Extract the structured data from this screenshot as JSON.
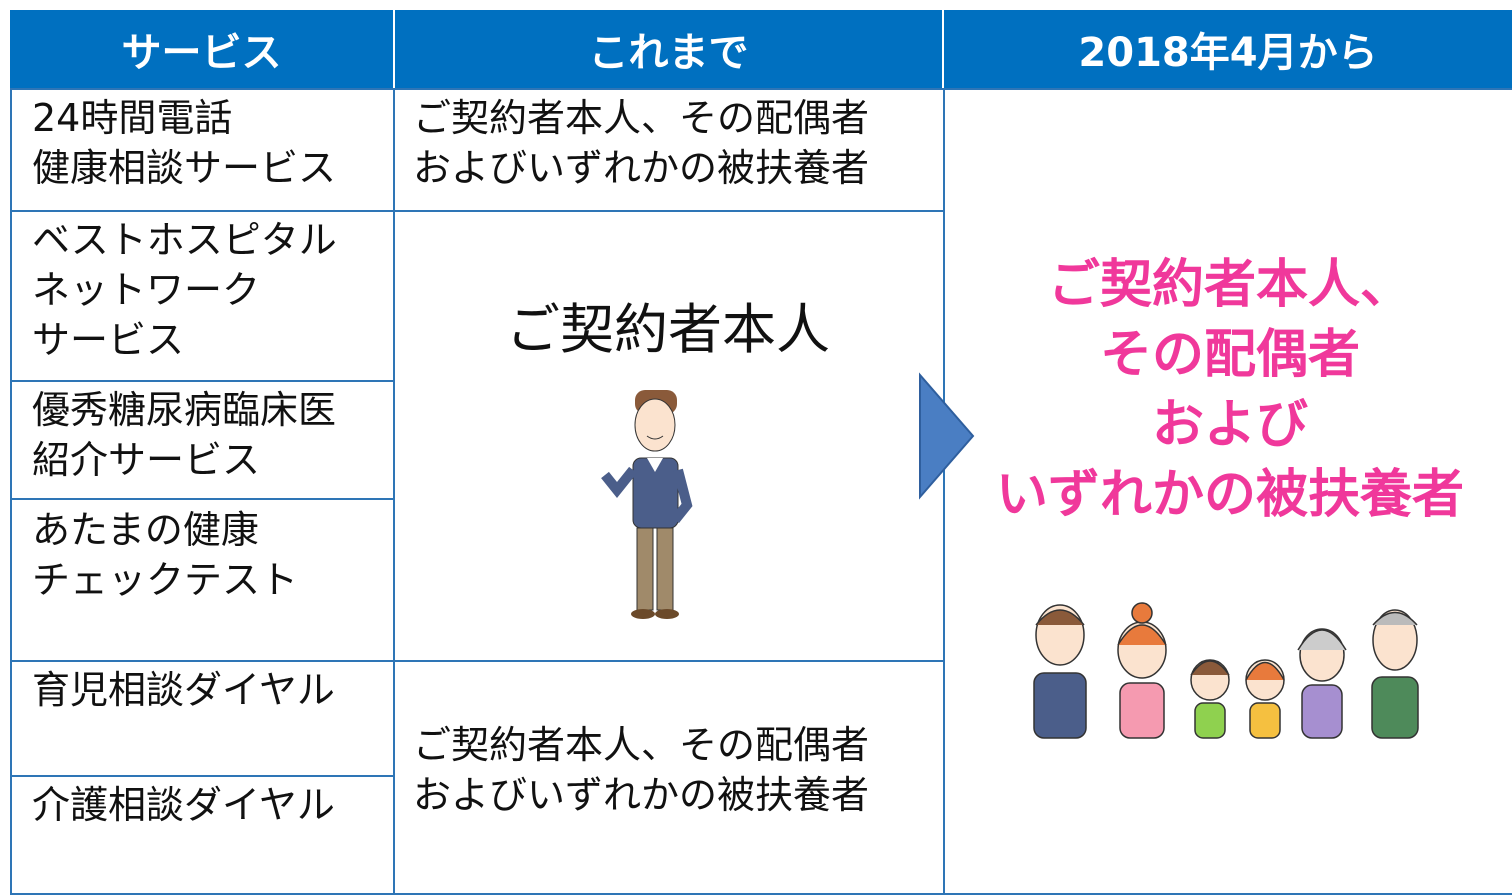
{
  "table": {
    "headers": [
      "サービス",
      "これまで",
      "2018年4月から"
    ],
    "services": [
      [
        "24時間電話",
        "健康相談サービス"
      ],
      [
        "ベストホスピタル",
        "ネットワーク",
        "サービス"
      ],
      [
        "優秀糖尿病臨床医",
        "紹介サービス"
      ],
      [
        "あたまの健康",
        "チェックテスト"
      ],
      [
        "育児相談ダイヤル"
      ],
      [
        "介護相談ダイヤル"
      ]
    ],
    "before": [
      [
        "ご契約者本人、その配偶者",
        "およびいずれかの被扶養者"
      ],
      [
        "ご契約者本人"
      ],
      [
        "ご契約者本人、その配偶者",
        "およびいずれかの被扶養者"
      ]
    ],
    "after": [
      "ご契約者本人、",
      "その配偶者",
      "および",
      "いずれかの被扶養者"
    ]
  }
}
